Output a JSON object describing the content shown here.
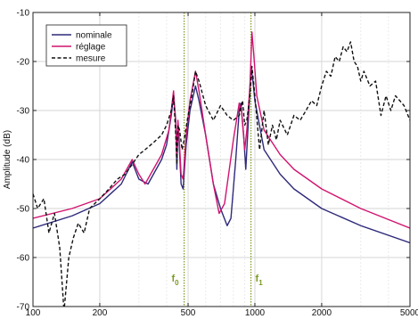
{
  "chart_data": {
    "type": "line",
    "xscale": "log",
    "xlim": [
      100,
      5000
    ],
    "ylim": [
      -70,
      -10
    ],
    "ylabel": "Amplitude (dB)",
    "xlabel": "",
    "grid": true,
    "legend_position": "top-left",
    "x_ticks": [
      100,
      200,
      500,
      1000,
      2000,
      5000
    ],
    "x_tick_labels": [
      "100",
      "200",
      "500",
      "1000",
      "2000",
      "5000"
    ],
    "y_ticks": [
      -70,
      -60,
      -50,
      -40,
      -30,
      -20,
      -10
    ],
    "y_tick_labels": [
      "-70",
      "-60",
      "-50",
      "-40",
      "-30",
      "-20",
      "-10"
    ],
    "series": [
      {
        "name": "nominale",
        "color": "#2e2a7a",
        "style": "solid",
        "points": [
          [
            100,
            -54
          ],
          [
            150,
            -51.5
          ],
          [
            200,
            -49
          ],
          [
            250,
            -45
          ],
          [
            280,
            -40.5
          ],
          [
            300,
            -44
          ],
          [
            330,
            -45
          ],
          [
            380,
            -40
          ],
          [
            400,
            -37
          ],
          [
            420,
            -31
          ],
          [
            430,
            -27
          ],
          [
            440,
            -32
          ],
          [
            445,
            -42
          ],
          [
            450,
            -33
          ],
          [
            455,
            -36
          ],
          [
            465,
            -45
          ],
          [
            475,
            -46
          ],
          [
            490,
            -37
          ],
          [
            510,
            -30
          ],
          [
            540,
            -25
          ],
          [
            560,
            -28
          ],
          [
            600,
            -35
          ],
          [
            650,
            -45
          ],
          [
            700,
            -50
          ],
          [
            750,
            -53.5
          ],
          [
            780,
            -52
          ],
          [
            820,
            -40
          ],
          [
            850,
            -30
          ],
          [
            865,
            -28.5
          ],
          [
            890,
            -35
          ],
          [
            910,
            -42
          ],
          [
            940,
            -30
          ],
          [
            960,
            -21
          ],
          [
            980,
            -24
          ],
          [
            1000,
            -28
          ],
          [
            1100,
            -38
          ],
          [
            1300,
            -43
          ],
          [
            1500,
            -46
          ],
          [
            2000,
            -50
          ],
          [
            3000,
            -53.5
          ],
          [
            5000,
            -57
          ]
        ]
      },
      {
        "name": "réglage",
        "color": "#d1146f",
        "style": "solid",
        "points": [
          [
            100,
            -52
          ],
          [
            150,
            -50
          ],
          [
            200,
            -48
          ],
          [
            250,
            -44
          ],
          [
            280,
            -40
          ],
          [
            300,
            -43
          ],
          [
            320,
            -45
          ],
          [
            380,
            -39
          ],
          [
            410,
            -34
          ],
          [
            430,
            -26
          ],
          [
            440,
            -33
          ],
          [
            445,
            -39
          ],
          [
            450,
            -32
          ],
          [
            455,
            -35
          ],
          [
            465,
            -43
          ],
          [
            475,
            -44
          ],
          [
            490,
            -35
          ],
          [
            510,
            -28
          ],
          [
            540,
            -22
          ],
          [
            560,
            -26
          ],
          [
            600,
            -35
          ],
          [
            650,
            -45
          ],
          [
            690,
            -51
          ],
          [
            730,
            -49
          ],
          [
            800,
            -36
          ],
          [
            850,
            -28.5
          ],
          [
            870,
            -30
          ],
          [
            900,
            -38
          ],
          [
            920,
            -34
          ],
          [
            950,
            -25
          ],
          [
            970,
            -14
          ],
          [
            990,
            -19
          ],
          [
            1020,
            -27
          ],
          [
            1100,
            -34
          ],
          [
            1300,
            -39
          ],
          [
            1500,
            -42
          ],
          [
            2000,
            -46
          ],
          [
            3000,
            -50
          ],
          [
            5000,
            -54
          ]
        ]
      },
      {
        "name": "mesure",
        "color": "#111111",
        "style": "dashed",
        "points": [
          [
            100,
            -47
          ],
          [
            105,
            -50
          ],
          [
            112,
            -48
          ],
          [
            118,
            -55
          ],
          [
            125,
            -51
          ],
          [
            132,
            -58
          ],
          [
            138,
            -71
          ],
          [
            145,
            -60
          ],
          [
            152,
            -56
          ],
          [
            160,
            -53
          ],
          [
            170,
            -55
          ],
          [
            180,
            -50
          ],
          [
            200,
            -48
          ],
          [
            220,
            -46
          ],
          [
            240,
            -44
          ],
          [
            260,
            -43
          ],
          [
            280,
            -41
          ],
          [
            300,
            -39
          ],
          [
            320,
            -38
          ],
          [
            350,
            -36.5
          ],
          [
            380,
            -35
          ],
          [
            400,
            -33
          ],
          [
            420,
            -30
          ],
          [
            430,
            -27
          ],
          [
            440,
            -35
          ],
          [
            445,
            -41
          ],
          [
            450,
            -33
          ],
          [
            458,
            -34
          ],
          [
            470,
            -38
          ],
          [
            480,
            -36
          ],
          [
            500,
            -31
          ],
          [
            520,
            -27
          ],
          [
            540,
            -22
          ],
          [
            560,
            -24
          ],
          [
            600,
            -29
          ],
          [
            650,
            -32
          ],
          [
            700,
            -29
          ],
          [
            750,
            -31
          ],
          [
            800,
            -32
          ],
          [
            850,
            -31
          ],
          [
            880,
            -28
          ],
          [
            900,
            -33
          ],
          [
            920,
            -32
          ],
          [
            950,
            -27
          ],
          [
            970,
            -21
          ],
          [
            1000,
            -27
          ],
          [
            1050,
            -38
          ],
          [
            1100,
            -30
          ],
          [
            1150,
            -37
          ],
          [
            1200,
            -33
          ],
          [
            1250,
            -36
          ],
          [
            1300,
            -32
          ],
          [
            1400,
            -35
          ],
          [
            1500,
            -31
          ],
          [
            1600,
            -32
          ],
          [
            1700,
            -30
          ],
          [
            1800,
            -28
          ],
          [
            1900,
            -29
          ],
          [
            2000,
            -25
          ],
          [
            2100,
            -22
          ],
          [
            2200,
            -23
          ],
          [
            2300,
            -19
          ],
          [
            2400,
            -20
          ],
          [
            2500,
            -17
          ],
          [
            2600,
            -18
          ],
          [
            2700,
            -16
          ],
          [
            2800,
            -20
          ],
          [
            2900,
            -21
          ],
          [
            3000,
            -24
          ],
          [
            3100,
            -22
          ],
          [
            3300,
            -25
          ],
          [
            3500,
            -24
          ],
          [
            3700,
            -31
          ],
          [
            3900,
            -27
          ],
          [
            4100,
            -30
          ],
          [
            4300,
            -27
          ],
          [
            4500,
            -28
          ],
          [
            4700,
            -29
          ],
          [
            5000,
            -32
          ]
        ]
      }
    ],
    "vlines": [
      {
        "x": 480,
        "color": "#7a9a1e",
        "label_main": "f",
        "label_sub": "0"
      },
      {
        "x": 960,
        "color": "#7a9a1e",
        "label_main": "f",
        "label_sub": "1"
      }
    ]
  }
}
